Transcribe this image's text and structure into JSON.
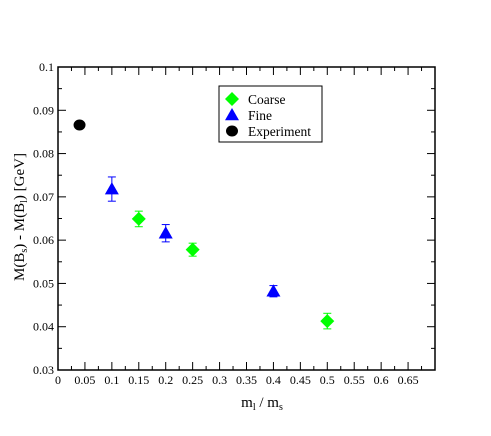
{
  "chart_data": {
    "type": "scatter",
    "title": "",
    "xlabel": {
      "main": "m",
      "sub1": "l",
      "mid": " / m",
      "sub2": "s"
    },
    "ylabel": {
      "part1": "M(B",
      "sub1": "s",
      "part2": ") - M(B",
      "sub2": "l",
      "part3": ") [GeV]"
    },
    "xlim": [
      0,
      0.7
    ],
    "ylim": [
      0.03,
      0.1
    ],
    "xticks": [
      0,
      0.05,
      0.1,
      0.15,
      0.2,
      0.25,
      0.3,
      0.35,
      0.4,
      0.45,
      0.5,
      0.55,
      0.6,
      0.65
    ],
    "xtick_labels": [
      "0",
      "0.05",
      "0.1",
      "0.15",
      "0.2",
      "0.25",
      "0.3",
      "0.35",
      "0.4",
      "0.45",
      "0.5",
      "0.55",
      "0.6",
      "0.65"
    ],
    "yticks": [
      0.03,
      0.04,
      0.05,
      0.06,
      0.07,
      0.08,
      0.09,
      0.1
    ],
    "ytick_labels": [
      "0.03",
      "0.04",
      "0.05",
      "0.06",
      "0.07",
      "0.08",
      "0.09",
      "0.1"
    ],
    "grid": false,
    "legend": "top-center",
    "series": [
      {
        "name": "Coarse",
        "marker": "diamond",
        "color": "#00ff00",
        "x": [
          0.15,
          0.25,
          0.5
        ],
        "y": [
          0.0649,
          0.0578,
          0.0413
        ],
        "err": [
          0.0018,
          0.0015,
          0.0018
        ]
      },
      {
        "name": "Fine",
        "marker": "triangle",
        "color": "#0000ff",
        "x": [
          0.1,
          0.2,
          0.4
        ],
        "y": [
          0.0718,
          0.0616,
          0.0482
        ],
        "err": [
          0.0028,
          0.002,
          0.0013
        ]
      },
      {
        "name": "Experiment",
        "marker": "circle",
        "color": "#000000",
        "x": [
          0.04
        ],
        "y": [
          0.0866
        ],
        "err": [
          0
        ]
      }
    ]
  }
}
